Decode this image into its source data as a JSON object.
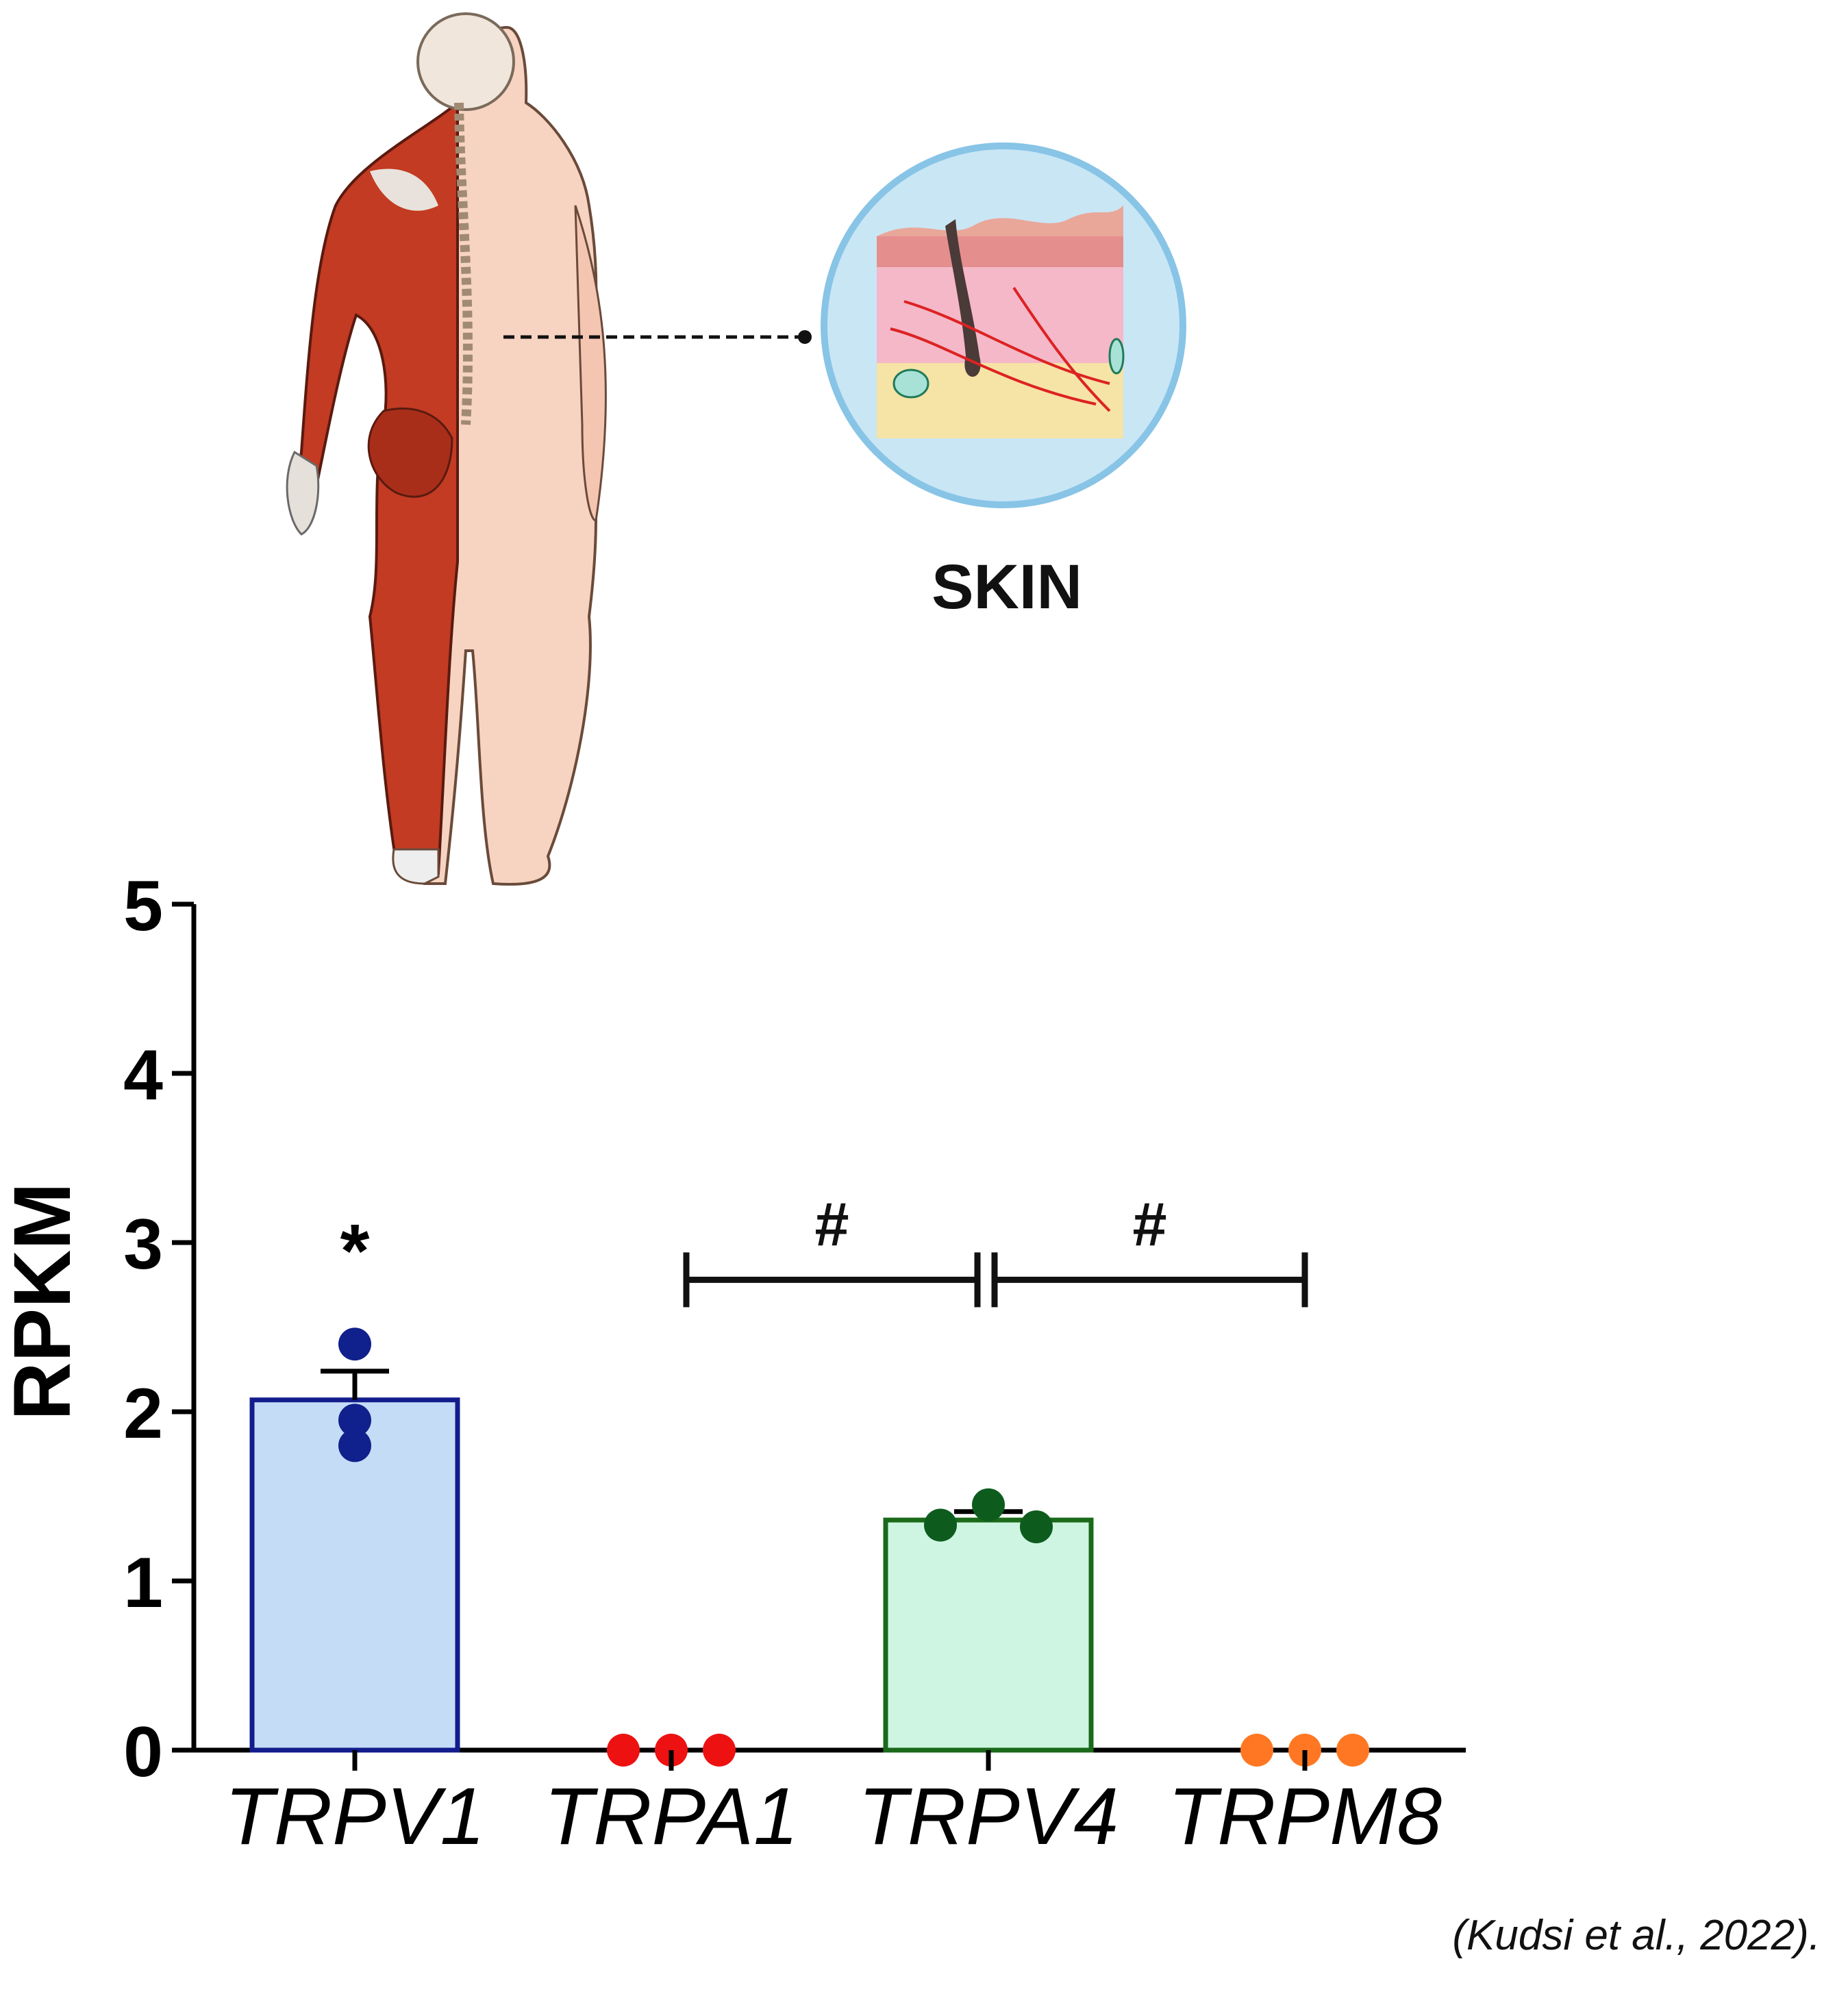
{
  "illustration": {
    "body_icon": "human-back-muscle-anatomy",
    "skin_icon": "skin-cross-section",
    "skin_label": "SKIN"
  },
  "citation": "(Kudsi et al., 2022).",
  "chart_data": {
    "type": "bar",
    "title": "",
    "xlabel": "",
    "ylabel": "RPKM",
    "categories": [
      "TRPV1",
      "TRPA1",
      "TRPV4",
      "TRPM8"
    ],
    "values": [
      2.07,
      0.0,
      1.36,
      0.0
    ],
    "errors": [
      0.17,
      0.0,
      0.05,
      0.0
    ],
    "points": [
      [
        2.4,
        1.95,
        1.8
      ],
      [
        0.0,
        0.0,
        0.0
      ],
      [
        1.33,
        1.45,
        1.32
      ],
      [
        0.0,
        0.0,
        0.0
      ]
    ],
    "ylim": [
      0,
      5
    ],
    "yticks": [
      0,
      1,
      2,
      3,
      4,
      5
    ],
    "grid": false,
    "colors": {
      "fill": [
        "#c5dcf6",
        "#ffffff",
        "#cdf5e2",
        "#ffffff"
      ],
      "edge": [
        "#131c8c",
        "#ff0000",
        "#1a6a1a",
        "#ff7722"
      ],
      "points": [
        "#10208c",
        "#ee1111",
        "#0d5c1e",
        "#ff7722"
      ]
    },
    "annotations": [
      {
        "text": "*",
        "category": "TRPV1",
        "y": 3.0
      },
      {
        "text": "#",
        "from": "TRPA1",
        "to": "TRPV4",
        "y": 2.78
      },
      {
        "text": "#",
        "from": "TRPV4",
        "to": "TRPM8",
        "y": 2.78
      }
    ]
  }
}
